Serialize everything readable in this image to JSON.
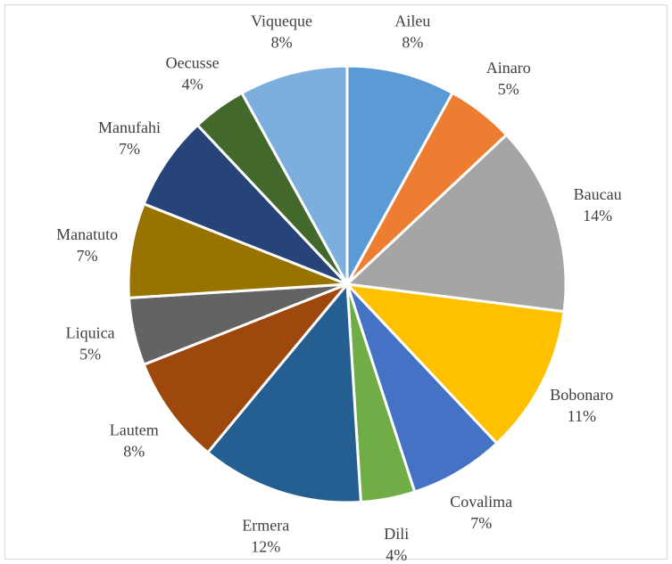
{
  "chart_data": {
    "type": "pie",
    "title": "",
    "slices": [
      {
        "label": "Aileu",
        "value": 8,
        "value_label": "8%",
        "color": "#5B9BD5"
      },
      {
        "label": "Ainaro",
        "value": 5,
        "value_label": "5%",
        "color": "#ED7D31"
      },
      {
        "label": "Baucau",
        "value": 14,
        "value_label": "14%",
        "color": "#A5A5A5"
      },
      {
        "label": "Bobonaro",
        "value": 11,
        "value_label": "11%",
        "color": "#FFC000"
      },
      {
        "label": "Covalima",
        "value": 7,
        "value_label": "7%",
        "color": "#4472C4"
      },
      {
        "label": "Dili",
        "value": 4,
        "value_label": "4%",
        "color": "#70AD47"
      },
      {
        "label": "Ermera",
        "value": 12,
        "value_label": "12%",
        "color": "#255E91"
      },
      {
        "label": "Lautem",
        "value": 8,
        "value_label": "8%",
        "color": "#9E480E"
      },
      {
        "label": "Liquica",
        "value": 5,
        "value_label": "5%",
        "color": "#636363"
      },
      {
        "label": "Manatuto",
        "value": 7,
        "value_label": "7%",
        "color": "#997300"
      },
      {
        "label": "Manufahi",
        "value": 7,
        "value_label": "7%",
        "color": "#264478"
      },
      {
        "label": "Oecusse",
        "value": 4,
        "value_label": "4%",
        "color": "#43682B"
      },
      {
        "label": "Viqueque",
        "value": 8,
        "value_label": "8%",
        "color": "#7CAFDD"
      }
    ]
  }
}
